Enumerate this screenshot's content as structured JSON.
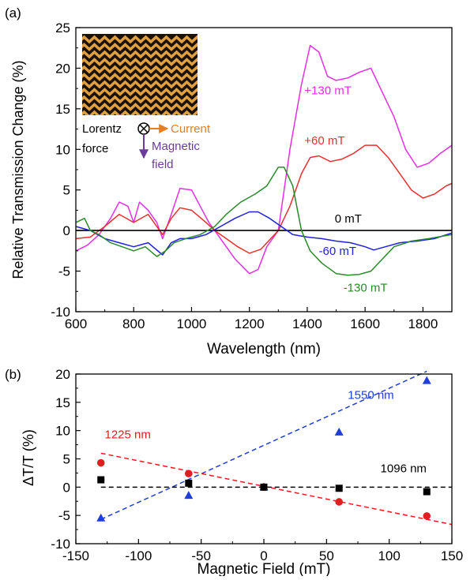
{
  "chart_data": [
    {
      "panel_label": "(a)",
      "type": "line",
      "xlabel": "Wavelength (nm)",
      "ylabel": "Relative Transmission Change (%)",
      "xlim": [
        600,
        1900
      ],
      "ylim": [
        -10,
        25
      ],
      "xticks": [
        600,
        800,
        1000,
        1200,
        1400,
        1600,
        1800
      ],
      "yticks": [
        -10,
        -5,
        0,
        5,
        10,
        15,
        20,
        25
      ],
      "series": [
        {
          "name": "+130 mT",
          "color": "#e62ee6",
          "points": [
            [
              600,
              -2.5
            ],
            [
              640,
              -1.8
            ],
            [
              680,
              -0.5
            ],
            [
              720,
              1.5
            ],
            [
              750,
              3.5
            ],
            [
              780,
              3.0
            ],
            [
              800,
              1.0
            ],
            [
              820,
              3.5
            ],
            [
              850,
              2.5
            ],
            [
              880,
              1.0
            ],
            [
              900,
              -1.0
            ],
            [
              930,
              2.0
            ],
            [
              960,
              5.2
            ],
            [
              1000,
              5.0
            ],
            [
              1030,
              3.0
            ],
            [
              1060,
              1.0
            ],
            [
              1080,
              0.0
            ],
            [
              1100,
              -1.0
            ],
            [
              1150,
              -3.5
            ],
            [
              1200,
              -5.3
            ],
            [
              1230,
              -4.8
            ],
            [
              1260,
              -2.0
            ],
            [
              1300,
              0.0
            ],
            [
              1340,
              10.0
            ],
            [
              1380,
              18.0
            ],
            [
              1410,
              22.8
            ],
            [
              1440,
              22.0
            ],
            [
              1470,
              19.0
            ],
            [
              1500,
              18.5
            ],
            [
              1540,
              18.8
            ],
            [
              1580,
              19.5
            ],
            [
              1620,
              20.0
            ],
            [
              1660,
              17.0
            ],
            [
              1700,
              14.0
            ],
            [
              1740,
              10.0
            ],
            [
              1780,
              7.8
            ],
            [
              1820,
              8.3
            ],
            [
              1860,
              9.5
            ],
            [
              1900,
              10.5
            ]
          ]
        },
        {
          "name": "+60 mT",
          "color": "#e83030",
          "points": [
            [
              600,
              -1.0
            ],
            [
              650,
              -0.8
            ],
            [
              700,
              0.5
            ],
            [
              750,
              2.0
            ],
            [
              800,
              1.0
            ],
            [
              850,
              2.0
            ],
            [
              900,
              -0.5
            ],
            [
              930,
              1.5
            ],
            [
              960,
              2.8
            ],
            [
              1000,
              2.5
            ],
            [
              1050,
              1.0
            ],
            [
              1080,
              0.0
            ],
            [
              1120,
              -1.0
            ],
            [
              1160,
              -2.0
            ],
            [
              1200,
              -2.8
            ],
            [
              1240,
              -2.3
            ],
            [
              1300,
              0.0
            ],
            [
              1340,
              3.0
            ],
            [
              1380,
              7.0
            ],
            [
              1410,
              9.0
            ],
            [
              1440,
              9.2
            ],
            [
              1480,
              8.5
            ],
            [
              1520,
              8.8
            ],
            [
              1560,
              9.5
            ],
            [
              1600,
              10.5
            ],
            [
              1640,
              10.5
            ],
            [
              1680,
              9.0
            ],
            [
              1720,
              7.0
            ],
            [
              1760,
              5.0
            ],
            [
              1800,
              4.0
            ],
            [
              1840,
              4.5
            ],
            [
              1880,
              5.5
            ],
            [
              1900,
              5.8
            ]
          ]
        },
        {
          "name": "0 mT",
          "color": "#000000",
          "points": [
            [
              600,
              0
            ],
            [
              1900,
              0
            ]
          ]
        },
        {
          "name": "-60 mT",
          "color": "#2020e0",
          "points": [
            [
              600,
              0.5
            ],
            [
              650,
              0.0
            ],
            [
              700,
              -1.0
            ],
            [
              750,
              -1.5
            ],
            [
              800,
              -2.0
            ],
            [
              850,
              -1.5
            ],
            [
              900,
              -3.0
            ],
            [
              930,
              -1.5
            ],
            [
              960,
              -1.0
            ],
            [
              1000,
              -1.0
            ],
            [
              1050,
              -0.5
            ],
            [
              1100,
              0.5
            ],
            [
              1150,
              1.5
            ],
            [
              1200,
              2.3
            ],
            [
              1230,
              2.3
            ],
            [
              1270,
              1.5
            ],
            [
              1310,
              0.5
            ],
            [
              1350,
              -0.5
            ],
            [
              1400,
              -0.8
            ],
            [
              1450,
              -1.0
            ],
            [
              1500,
              -1.3
            ],
            [
              1550,
              -1.5
            ],
            [
              1600,
              -2.0
            ],
            [
              1630,
              -2.4
            ],
            [
              1670,
              -2.0
            ],
            [
              1720,
              -1.5
            ],
            [
              1780,
              -1.3
            ],
            [
              1840,
              -1.0
            ],
            [
              1900,
              -0.3
            ]
          ]
        },
        {
          "name": "-130 mT",
          "color": "#2a8a2a",
          "points": [
            [
              600,
              1.0
            ],
            [
              630,
              1.5
            ],
            [
              650,
              0.0
            ],
            [
              680,
              -0.5
            ],
            [
              720,
              -1.5
            ],
            [
              760,
              -2.0
            ],
            [
              800,
              -2.5
            ],
            [
              840,
              -2.0
            ],
            [
              880,
              -3.2
            ],
            [
              910,
              -2.5
            ],
            [
              940,
              -1.5
            ],
            [
              980,
              -1.0
            ],
            [
              1030,
              -0.5
            ],
            [
              1080,
              0.5
            ],
            [
              1120,
              2.0
            ],
            [
              1170,
              3.5
            ],
            [
              1220,
              4.5
            ],
            [
              1260,
              5.5
            ],
            [
              1300,
              7.8
            ],
            [
              1320,
              7.8
            ],
            [
              1350,
              5.5
            ],
            [
              1380,
              0.0
            ],
            [
              1410,
              -2.5
            ],
            [
              1450,
              -4.0
            ],
            [
              1500,
              -5.3
            ],
            [
              1540,
              -5.5
            ],
            [
              1580,
              -5.4
            ],
            [
              1620,
              -5.0
            ],
            [
              1660,
              -3.5
            ],
            [
              1700,
              -2.0
            ],
            [
              1760,
              -1.3
            ],
            [
              1820,
              -1.0
            ],
            [
              1900,
              -0.5
            ]
          ]
        }
      ],
      "annotations": [
        {
          "text": "+130 mT",
          "color": "#e62ee6",
          "x": 1390,
          "y": 16.8
        },
        {
          "text": "+60 mT",
          "color": "#e83030",
          "x": 1390,
          "y": 10.6
        },
        {
          "text": "0 mT",
          "color": "#000000",
          "x": 1495,
          "y": 1.0
        },
        {
          "text": "-60 mT",
          "color": "#2020e0",
          "x": 1440,
          "y": -3.0
        },
        {
          "text": "-130 mT",
          "color": "#2a8a2a",
          "x": 1525,
          "y": -7.5
        }
      ],
      "inset": {
        "lorentz_label": [
          "Lorentz",
          "force"
        ],
        "current_label": "Current",
        "magnetic_label": [
          "Magnetic",
          "field"
        ],
        "current_color": "#e67e22",
        "magnetic_color": "#6a3d9a"
      }
    },
    {
      "panel_label": "(b)",
      "type": "scatter",
      "xlabel": "Magnetic Field (mT)",
      "ylabel": "ΔT/T (%)",
      "xlim": [
        -150,
        150
      ],
      "ylim": [
        -10,
        20
      ],
      "xticks": [
        -150,
        -100,
        -50,
        0,
        50,
        100,
        150
      ],
      "yticks": [
        -10,
        -5,
        0,
        5,
        10,
        15,
        20
      ],
      "series": [
        {
          "name": "1550 nm",
          "color": "#1f3fd8",
          "marker": "triangle",
          "x": [
            -130,
            -60,
            0,
            60,
            130
          ],
          "y": [
            -5.5,
            -1.5,
            0,
            9.7,
            18.8
          ],
          "fit": [
            [
              -130,
              -5.7
            ],
            [
              130,
              20.5
            ]
          ]
        },
        {
          "name": "1225 nm",
          "color": "#e02020",
          "marker": "circle",
          "x": [
            -130,
            -60,
            0,
            60,
            130
          ],
          "y": [
            4.3,
            2.4,
            0,
            -2.6,
            -5.1
          ],
          "fit": [
            [
              -130,
              6.0
            ],
            [
              150,
              -6.6
            ]
          ]
        },
        {
          "name": "1096 nm",
          "color": "#000000",
          "marker": "square",
          "x": [
            -130,
            -60,
            0,
            60,
            130
          ],
          "y": [
            1.3,
            0.7,
            0,
            -0.2,
            -0.8
          ],
          "fit": [
            [
              -130,
              0
            ],
            [
              150,
              0
            ]
          ]
        }
      ],
      "annotations": [
        {
          "text": "1550 nm",
          "color": "#1f3fd8",
          "x": 67,
          "y": 15.6
        },
        {
          "text": "1225 nm",
          "color": "#e02020",
          "x": -127,
          "y": 8.6
        },
        {
          "text": "1096 nm",
          "color": "#000000",
          "x": 93,
          "y": 2.6
        }
      ]
    }
  ]
}
